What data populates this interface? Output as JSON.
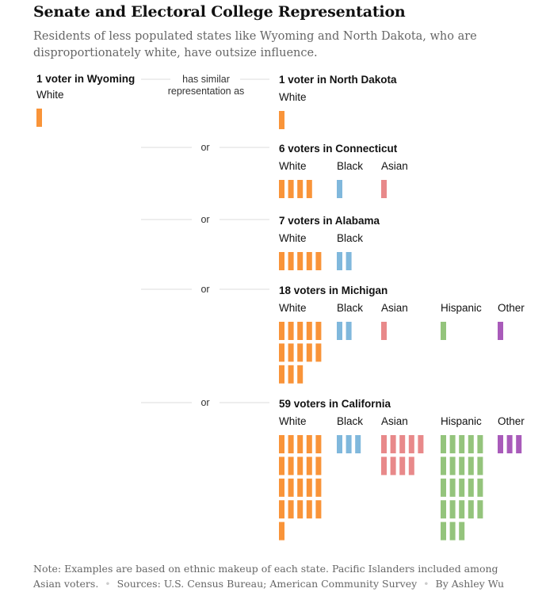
{
  "title": "Senate and Electoral College Representation",
  "subtitle": "Residents of less populated states like Wyoming and North Dakota, who are disproportionately white, have outsize influence.",
  "connector_first_line1": "has similar",
  "connector_first_line2": "representation as",
  "connector_or": "or",
  "note": {
    "text": "Note: Examples are based on ethnic makeup of each state. Pacific Islanders included among Asian voters.",
    "sources": "Sources: U.S. Census Bureau; American Community Survey",
    "byline": "By Ashley Wu"
  },
  "colors": {
    "White": "#f99439",
    "Black": "#80b8dc",
    "Asian": "#e8898a",
    "Hispanic": "#94c47c",
    "Other": "#a95bba"
  },
  "chart_data": {
    "type": "unit-pictogram",
    "reference": {
      "label": "1 voter in Wyoming",
      "groups": [
        {
          "name": "White",
          "count": 1
        }
      ]
    },
    "comparisons": [
      {
        "label": "1 voter in North Dakota",
        "groups": [
          {
            "name": "White",
            "count": 1
          }
        ]
      },
      {
        "label": "6 voters in Connecticut",
        "groups": [
          {
            "name": "White",
            "count": 4
          },
          {
            "name": "Black",
            "count": 1
          },
          {
            "name": "Asian",
            "count": 1
          }
        ]
      },
      {
        "label": "7 voters in Alabama",
        "groups": [
          {
            "name": "White",
            "count": 5
          },
          {
            "name": "Black",
            "count": 2
          }
        ]
      },
      {
        "label": "18 voters in Michigan",
        "groups": [
          {
            "name": "White",
            "count": 13
          },
          {
            "name": "Black",
            "count": 2
          },
          {
            "name": "Asian",
            "count": 1
          },
          {
            "name": "Hispanic",
            "count": 1
          },
          {
            "name": "Other",
            "count": 1
          }
        ]
      },
      {
        "label": "59 voters in California",
        "groups": [
          {
            "name": "White",
            "count": 21
          },
          {
            "name": "Black",
            "count": 3
          },
          {
            "name": "Asian",
            "count": 9
          },
          {
            "name": "Hispanic",
            "count": 23
          },
          {
            "name": "Other",
            "count": 3
          }
        ]
      }
    ]
  }
}
